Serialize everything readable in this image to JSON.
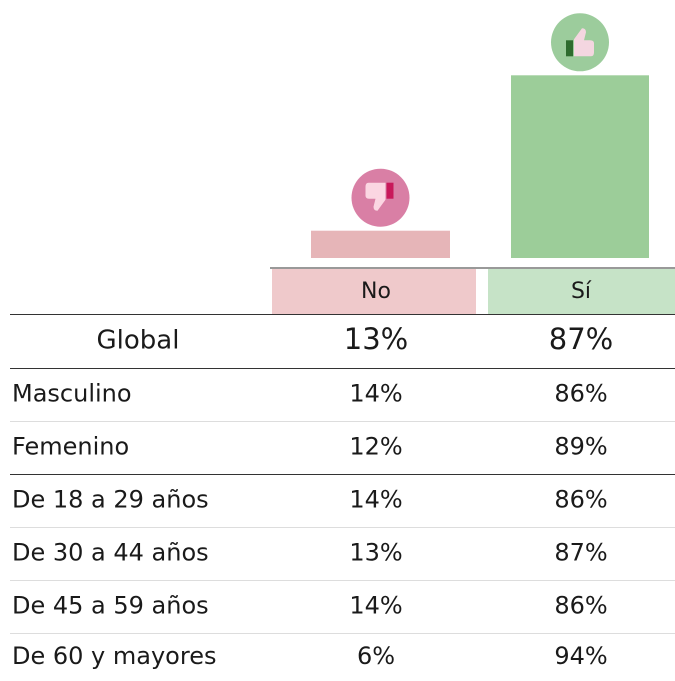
{
  "table": {
    "columns": [
      "No",
      "Sí"
    ],
    "bar_colors": [
      "#e6b5b8",
      "#9ccd99"
    ],
    "header_colors": [
      "#efc9cb",
      "#c6e3c7"
    ],
    "icon_colors": [
      "#d97fa5",
      "#9ccc9c"
    ],
    "rows": [
      {
        "label": "Global",
        "values": [
          13,
          87
        ],
        "value_labels": [
          "13%",
          "87%"
        ]
      },
      {
        "label": "Masculino",
        "values": [
          14,
          86
        ],
        "value_labels": [
          "14%",
          "86%"
        ]
      },
      {
        "label": "Femenino",
        "values": [
          12,
          89
        ],
        "value_labels": [
          "12%",
          "89%"
        ]
      },
      {
        "label": "De 18 a 29 años",
        "values": [
          14,
          86
        ],
        "value_labels": [
          "14%",
          "86%"
        ]
      },
      {
        "label": "De 30 a 44 años",
        "values": [
          13,
          87
        ],
        "value_labels": [
          "13%",
          "87%"
        ]
      },
      {
        "label": "De 45 a 59 años",
        "values": [
          14,
          86
        ],
        "value_labels": [
          "14%",
          "86%"
        ]
      },
      {
        "label": "De 60 y mayores",
        "values": [
          6,
          94
        ],
        "value_labels": [
          "6%",
          "94%"
        ]
      }
    ]
  }
}
